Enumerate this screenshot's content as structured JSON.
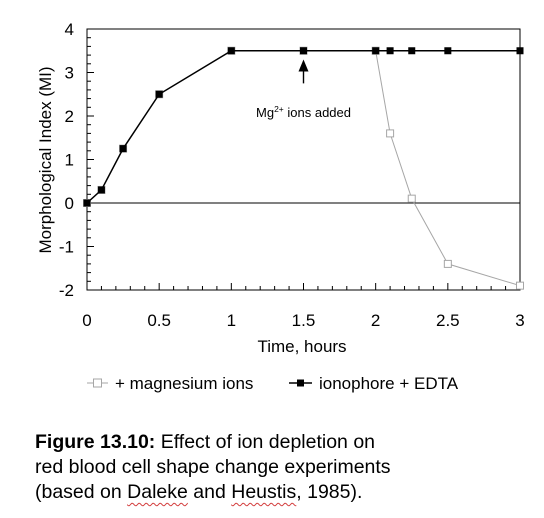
{
  "chart_data": {
    "type": "line",
    "xlabel": "Time, hours",
    "ylabel": "Morphological Index (MI)",
    "xlim": [
      0,
      3
    ],
    "ylim": [
      -2,
      4
    ],
    "x_ticks": [
      "0",
      "0.5",
      "1",
      "1.5",
      "2",
      "2.5",
      "3"
    ],
    "y_ticks": [
      "-2",
      "-1",
      "0",
      "1",
      "2",
      "3",
      "4"
    ],
    "grid": false,
    "legend_position": "bottom",
    "series": [
      {
        "name": "+ magnesium ions",
        "color": "#a6a6a6",
        "marker": "open-square",
        "points": [
          [
            0,
            0
          ],
          [
            0.1,
            0.3
          ],
          [
            0.25,
            1.25
          ],
          [
            0.5,
            2.5
          ],
          [
            1,
            3.5
          ],
          [
            1.5,
            3.5
          ],
          [
            2,
            3.5
          ],
          [
            2.1,
            1.6
          ],
          [
            2.25,
            0.1
          ],
          [
            2.5,
            -1.4
          ],
          [
            3,
            -1.9
          ]
        ]
      },
      {
        "name": "ionophore + EDTA",
        "color": "#000000",
        "marker": "filled-square",
        "points": [
          [
            0,
            0
          ],
          [
            0.1,
            0.3
          ],
          [
            0.25,
            1.25
          ],
          [
            0.5,
            2.5
          ],
          [
            1,
            3.5
          ],
          [
            1.5,
            3.5
          ],
          [
            2,
            3.5
          ],
          [
            2.1,
            3.5
          ],
          [
            2.25,
            3.5
          ],
          [
            2.5,
            3.5
          ],
          [
            3,
            3.5
          ]
        ]
      }
    ],
    "annotation": {
      "text_main": "Mg",
      "text_sup": "2+",
      "text_rest": " ions added",
      "arrow_x": 1.5,
      "arrow_tip_y": 3.3,
      "arrow_tail_y": 2.75
    }
  },
  "caption": {
    "label": "Figure 13.10:",
    "text_1": " Effect of ion depletion on",
    "text_2": "red blood cell shape change experiments",
    "text_3a": "(based on ",
    "name_1": "Daleke",
    "text_3b": " and ",
    "name_2": "Heustis",
    "text_3c": ", 1985)."
  }
}
